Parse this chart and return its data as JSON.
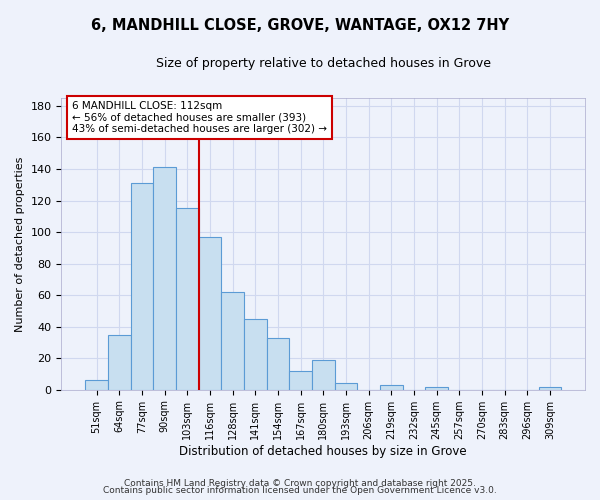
{
  "title": "6, MANDHILL CLOSE, GROVE, WANTAGE, OX12 7HY",
  "subtitle": "Size of property relative to detached houses in Grove",
  "xlabel": "Distribution of detached houses by size in Grove",
  "ylabel": "Number of detached properties",
  "bar_labels": [
    "51sqm",
    "64sqm",
    "77sqm",
    "90sqm",
    "103sqm",
    "116sqm",
    "128sqm",
    "141sqm",
    "154sqm",
    "167sqm",
    "180sqm",
    "193sqm",
    "206sqm",
    "219sqm",
    "232sqm",
    "245sqm",
    "257sqm",
    "270sqm",
    "283sqm",
    "296sqm",
    "309sqm"
  ],
  "bar_values": [
    6,
    35,
    131,
    141,
    115,
    97,
    62,
    45,
    33,
    12,
    19,
    4,
    0,
    3,
    0,
    2,
    0,
    0,
    0,
    0,
    2
  ],
  "bar_color": "#c8dff0",
  "bar_edge_color": "#5b9bd5",
  "vline_x_index": 4.5,
  "vline_color": "#cc0000",
  "annotation_line1": "6 MANDHILL CLOSE: 112sqm",
  "annotation_line2": "← 56% of detached houses are smaller (393)",
  "annotation_line3": "43% of semi-detached houses are larger (302) →",
  "ylim": [
    0,
    185
  ],
  "yticks": [
    0,
    20,
    40,
    60,
    80,
    100,
    120,
    140,
    160,
    180
  ],
  "bg_color": "#eef2fb",
  "grid_color": "#d0d8ef",
  "footer_line1": "Contains HM Land Registry data © Crown copyright and database right 2025.",
  "footer_line2": "Contains public sector information licensed under the Open Government Licence v3.0."
}
